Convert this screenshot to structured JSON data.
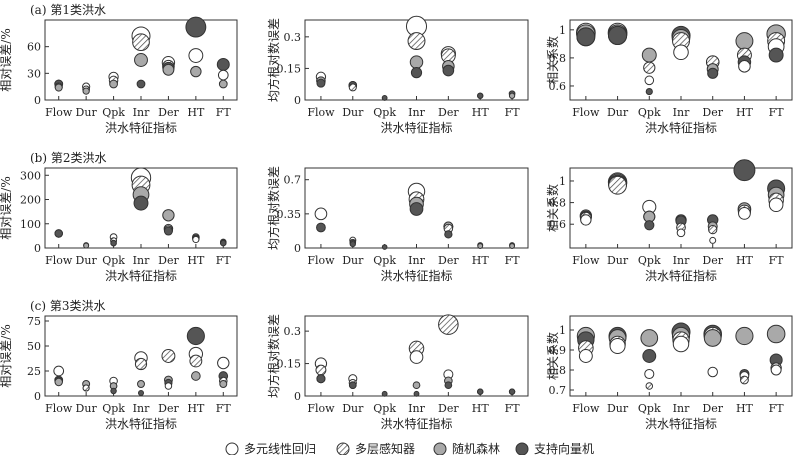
{
  "figure": {
    "legend": [
      {
        "key": "mlr",
        "label": "多元线性回归"
      },
      {
        "key": "mlp",
        "label": "多层感知器"
      },
      {
        "key": "rf",
        "label": "随机森林"
      },
      {
        "key": "svm",
        "label": "支持向量机"
      }
    ]
  },
  "chart_data": [
    {
      "type": "scatter",
      "title": "(a) 第1类洪水",
      "xlabel": "洪水特征指标",
      "ylabel": "相对误差/%",
      "categories": [
        "Flow",
        "Dur",
        "Qpk",
        "Inr",
        "Der",
        "HT",
        "FT"
      ],
      "ylim": [
        0,
        90
      ],
      "yticks": [
        0,
        30,
        60
      ],
      "series": [
        {
          "key": "mlr",
          "values": [
            18,
            15,
            26,
            72,
            42,
            50,
            28
          ]
        },
        {
          "key": "mlp",
          "values": [
            15,
            12,
            22,
            65,
            38,
            0,
            0
          ]
        },
        {
          "key": "rf",
          "values": [
            14,
            10,
            18,
            45,
            34,
            32,
            18
          ]
        },
        {
          "key": "svm",
          "values": [
            18,
            0,
            0,
            18,
            36,
            82,
            40
          ]
        }
      ]
    },
    {
      "type": "scatter",
      "title": "",
      "xlabel": "洪水特征指标",
      "ylabel": "均方根对数误差",
      "categories": [
        "Flow",
        "Dur",
        "Qpk",
        "Inr",
        "Der",
        "HT",
        "FT"
      ],
      "ylim": [
        0,
        0.38
      ],
      "yticks": [
        0,
        0.15,
        0.3
      ],
      "series": [
        {
          "key": "mlr",
          "values": [
            0.11,
            0.07,
            0,
            0.35,
            0.22,
            0,
            0
          ]
        },
        {
          "key": "mlp",
          "values": [
            0.09,
            0.06,
            0,
            0.28,
            0.21,
            0,
            0
          ]
        },
        {
          "key": "rf",
          "values": [
            0.09,
            0.07,
            0,
            0.18,
            0.16,
            0.02,
            0.02
          ]
        },
        {
          "key": "svm",
          "values": [
            0.08,
            0.07,
            0.01,
            0.13,
            0.14,
            0.02,
            0.03
          ]
        }
      ]
    },
    {
      "type": "scatter",
      "title": "",
      "xlabel": "洪水特征指标",
      "ylabel": "相关系数",
      "categories": [
        "Flow",
        "Dur",
        "Qpk",
        "Inr",
        "Der",
        "HT",
        "FT"
      ],
      "ylim": [
        0.5,
        1.07
      ],
      "yticks": [
        0.6,
        0.8,
        1.0
      ],
      "series": [
        {
          "key": "mlr",
          "values": [
            0.98,
            0.98,
            0.64,
            0.84,
            0.77,
            0.74,
            0.88
          ]
        },
        {
          "key": "mlp",
          "values": [
            0.95,
            0.96,
            0.73,
            0.92,
            0.77,
            0.82,
            0.92
          ]
        },
        {
          "key": "rf",
          "values": [
            0.97,
            0.97,
            0.82,
            0.94,
            0.72,
            0.92,
            0.97
          ]
        },
        {
          "key": "svm",
          "values": [
            0.95,
            0.96,
            0.56,
            0.96,
            0.69,
            0.77,
            0.82
          ]
        }
      ]
    },
    {
      "type": "scatter",
      "title": "(b) 第2类洪水",
      "xlabel": "洪水特征指标",
      "ylabel": "相对误差/%",
      "categories": [
        "Flow",
        "Dur",
        "Qpk",
        "Inr",
        "Der",
        "HT",
        "FT"
      ],
      "ylim": [
        0,
        330
      ],
      "yticks": [
        0,
        100,
        200,
        300
      ],
      "series": [
        {
          "key": "mlr",
          "values": [
            0,
            0,
            45,
            290,
            80,
            35,
            25
          ]
        },
        {
          "key": "mlp",
          "values": [
            0,
            0,
            30,
            260,
            75,
            40,
            22
          ]
        },
        {
          "key": "rf",
          "values": [
            60,
            10,
            20,
            220,
            135,
            45,
            22
          ]
        },
        {
          "key": "svm",
          "values": [
            60,
            12,
            20,
            185,
            70,
            40,
            20
          ]
        }
      ]
    },
    {
      "type": "scatter",
      "title": "",
      "xlabel": "洪水特征指标",
      "ylabel": "均方根对数误差",
      "categories": [
        "Flow",
        "Dur",
        "Qpk",
        "Inr",
        "Der",
        "HT",
        "FT"
      ],
      "ylim": [
        0,
        0.82
      ],
      "yticks": [
        0,
        0.35,
        0.7
      ],
      "series": [
        {
          "key": "mlr",
          "values": [
            0.35,
            0.08,
            0,
            0.58,
            0.22,
            0,
            0
          ]
        },
        {
          "key": "mlp",
          "values": [
            0,
            0.06,
            0,
            0.5,
            0.2,
            0,
            0
          ]
        },
        {
          "key": "rf",
          "values": [
            0,
            0.05,
            0,
            0.45,
            0.22,
            0.02,
            0.02
          ]
        },
        {
          "key": "svm",
          "values": [
            0.21,
            0.04,
            0.01,
            0.4,
            0.14,
            0.03,
            0.03
          ]
        }
      ]
    },
    {
      "type": "scatter",
      "title": "",
      "xlabel": "洪水特征指标",
      "ylabel": "相关系数",
      "categories": [
        "Flow",
        "Dur",
        "Qpk",
        "Inr",
        "Der",
        "HT",
        "FT"
      ],
      "ylim": [
        0.38,
        1.12
      ],
      "yticks": [
        0.6,
        0.8,
        1.0
      ],
      "series": [
        {
          "key": "mlr",
          "values": [
            0.64,
            0.99,
            0.76,
            0.52,
            0.45,
            0.7,
            0.78
          ]
        },
        {
          "key": "mlp",
          "values": [
            0.66,
            0.96,
            0.67,
            0.57,
            0.55,
            0.72,
            0.82
          ]
        },
        {
          "key": "rf",
          "values": [
            0.68,
            0.98,
            0.67,
            0.64,
            0.58,
            0.74,
            0.87
          ]
        },
        {
          "key": "svm",
          "values": [
            0.67,
            0.97,
            0.59,
            0.63,
            0.64,
            1.1,
            0.93
          ]
        }
      ]
    },
    {
      "type": "scatter",
      "title": "(c) 第3类洪水",
      "xlabel": "洪水特征指标",
      "ylabel": "相对误差/%",
      "categories": [
        "Flow",
        "Dur",
        "Qpk",
        "Inr",
        "Der",
        "HT",
        "FT"
      ],
      "ylim": [
        0,
        80
      ],
      "yticks": [
        0,
        25,
        50,
        75
      ],
      "series": [
        {
          "key": "mlr",
          "values": [
            25,
            8,
            15,
            38,
            10,
            42,
            33
          ]
        },
        {
          "key": "mlp",
          "values": [
            15,
            8,
            10,
            32,
            40,
            35,
            15
          ]
        },
        {
          "key": "rf",
          "values": [
            14,
            12,
            10,
            12,
            16,
            20,
            12
          ]
        },
        {
          "key": "svm",
          "values": [
            16,
            0,
            5,
            3,
            13,
            60,
            20
          ]
        }
      ]
    },
    {
      "type": "scatter",
      "title": "",
      "xlabel": "洪水特征指标",
      "ylabel": "均方根对数误差",
      "categories": [
        "Flow",
        "Dur",
        "Qpk",
        "Inr",
        "Der",
        "HT",
        "FT"
      ],
      "ylim": [
        0,
        0.37
      ],
      "yticks": [
        0,
        0.15,
        0.3
      ],
      "series": [
        {
          "key": "mlr",
          "values": [
            0.15,
            0.08,
            0,
            0.18,
            0.1,
            0.02,
            0.02
          ]
        },
        {
          "key": "mlp",
          "values": [
            0.12,
            0.06,
            0,
            0.22,
            0.33,
            0,
            0
          ]
        },
        {
          "key": "rf",
          "values": [
            0.08,
            0.05,
            0,
            0.05,
            0.07,
            0.02,
            0.02
          ]
        },
        {
          "key": "svm",
          "values": [
            0.08,
            0.05,
            0.01,
            0.01,
            0.05,
            0.02,
            0.02
          ]
        }
      ]
    },
    {
      "type": "scatter",
      "title": "",
      "xlabel": "洪水特征指标",
      "ylabel": "相关系数",
      "categories": [
        "Flow",
        "Dur",
        "Qpk",
        "Inr",
        "Der",
        "HT",
        "FT"
      ],
      "ylim": [
        0.67,
        1.07
      ],
      "yticks": [
        0.7,
        0.8,
        0.9,
        1.0
      ],
      "series": [
        {
          "key": "mlr",
          "values": [
            0.87,
            0.92,
            0.78,
            0.93,
            0.79,
            0.77,
            0.8
          ]
        },
        {
          "key": "mlp",
          "values": [
            0.91,
            0.93,
            0.72,
            0.95,
            0.97,
            0.75,
            0.81
          ]
        },
        {
          "key": "rf",
          "values": [
            0.97,
            0.96,
            0.96,
            0.97,
            0.96,
            0.97,
            0.98
          ]
        },
        {
          "key": "svm",
          "values": [
            0.95,
            0.97,
            0.87,
            0.99,
            0.98,
            0.78,
            0.85
          ]
        }
      ]
    }
  ]
}
